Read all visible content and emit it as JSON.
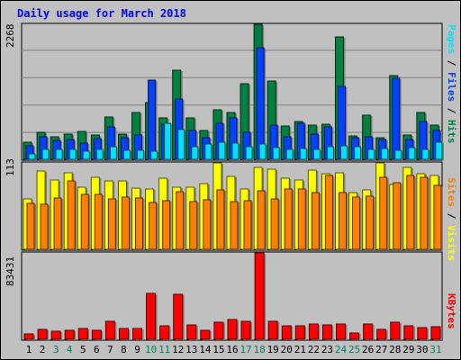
{
  "title": "Daily usage for March 2018",
  "colors": {
    "hits": "#008040",
    "files": "#0040FF",
    "pages": "#00E0FF",
    "visits": "#FFFF00",
    "sites": "#FF8000",
    "kbytes": "#FF0000",
    "weekend_day": "#00805C",
    "weekday_day": "#000000",
    "background": "#C0C0C0",
    "plot_bg": "#C0C0C0"
  },
  "right_labels": {
    "top": {
      "pages": "Pages",
      "files": "Files",
      "hits": "Hits",
      "sep": " / "
    },
    "middle": {
      "sites": "Sites",
      "visits": "Visits",
      "sep": " / "
    },
    "bottom": {
      "kbytes": "KBytes"
    }
  },
  "chart_data": [
    {
      "type": "bar",
      "panel": "top",
      "y_label": "2268",
      "ylim": [
        0,
        2268
      ],
      "categories": [
        "1",
        "2",
        "3",
        "4",
        "5",
        "6",
        "7",
        "8",
        "9",
        "10",
        "11",
        "12",
        "13",
        "14",
        "15",
        "16",
        "17",
        "18",
        "19",
        "20",
        "21",
        "22",
        "23",
        "24",
        "25",
        "26",
        "27",
        "28",
        "29",
        "30",
        "31"
      ],
      "series": [
        {
          "name": "Hits",
          "values": [
            290,
            450,
            380,
            420,
            470,
            410,
            710,
            420,
            790,
            950,
            690,
            1490,
            690,
            480,
            830,
            780,
            1270,
            2268,
            1320,
            560,
            630,
            570,
            590,
            2060,
            400,
            740,
            360,
            1400,
            410,
            790,
            570
          ]
        },
        {
          "name": "Files",
          "values": [
            230,
            380,
            310,
            330,
            270,
            350,
            540,
            370,
            410,
            1330,
            590,
            1010,
            490,
            360,
            610,
            700,
            460,
            1870,
            570,
            380,
            600,
            430,
            540,
            1230,
            360,
            380,
            330,
            1360,
            330,
            640,
            480
          ]
        },
        {
          "name": "Pages",
          "values": [
            90,
            160,
            170,
            160,
            140,
            160,
            210,
            150,
            150,
            130,
            610,
            500,
            210,
            260,
            280,
            270,
            210,
            260,
            190,
            160,
            180,
            160,
            210,
            220,
            210,
            160,
            180,
            150,
            200,
            160,
            280
          ]
        }
      ]
    },
    {
      "type": "bar",
      "panel": "middle",
      "y_label": "113",
      "ylim": [
        0,
        113
      ],
      "categories": [
        "1",
        "2",
        "3",
        "4",
        "5",
        "6",
        "7",
        "8",
        "9",
        "10",
        "11",
        "12",
        "13",
        "14",
        "15",
        "16",
        "17",
        "18",
        "19",
        "20",
        "21",
        "22",
        "23",
        "24",
        "25",
        "26",
        "27",
        "28",
        "29",
        "30",
        "31"
      ],
      "series": [
        {
          "name": "Visits",
          "values": [
            66,
            102,
            91,
            100,
            81,
            94,
            90,
            89,
            80,
            79,
            93,
            81,
            81,
            86,
            113,
            95,
            79,
            107,
            105,
            93,
            91,
            103,
            99,
            100,
            74,
            78,
            113,
            85,
            107,
            99,
            97
          ]
        },
        {
          "name": "Sites",
          "values": [
            60,
            59,
            67,
            89,
            72,
            72,
            66,
            68,
            67,
            61,
            63,
            75,
            62,
            65,
            78,
            62,
            63,
            76,
            66,
            79,
            79,
            74,
            96,
            74,
            68,
            69,
            94,
            87,
            96,
            94,
            84
          ]
        }
      ]
    },
    {
      "type": "bar",
      "panel": "bottom",
      "y_label": "83431",
      "ylim": [
        0,
        83431
      ],
      "categories": [
        "1",
        "2",
        "3",
        "4",
        "5",
        "6",
        "7",
        "8",
        "9",
        "10",
        "11",
        "12",
        "13",
        "14",
        "15",
        "16",
        "17",
        "18",
        "19",
        "20",
        "21",
        "22",
        "23",
        "24",
        "25",
        "26",
        "27",
        "28",
        "29",
        "30",
        "31"
      ],
      "series": [
        {
          "name": "KBytes",
          "values": [
            5600,
            9600,
            7600,
            8600,
            10100,
            8600,
            17500,
            10100,
            10100,
            44600,
            12700,
            43500,
            14200,
            8600,
            16100,
            19200,
            17700,
            83431,
            17700,
            12700,
            12700,
            15200,
            14200,
            15200,
            6100,
            15200,
            9600,
            16600,
            12700,
            11600,
            12200
          ]
        }
      ]
    }
  ]
}
